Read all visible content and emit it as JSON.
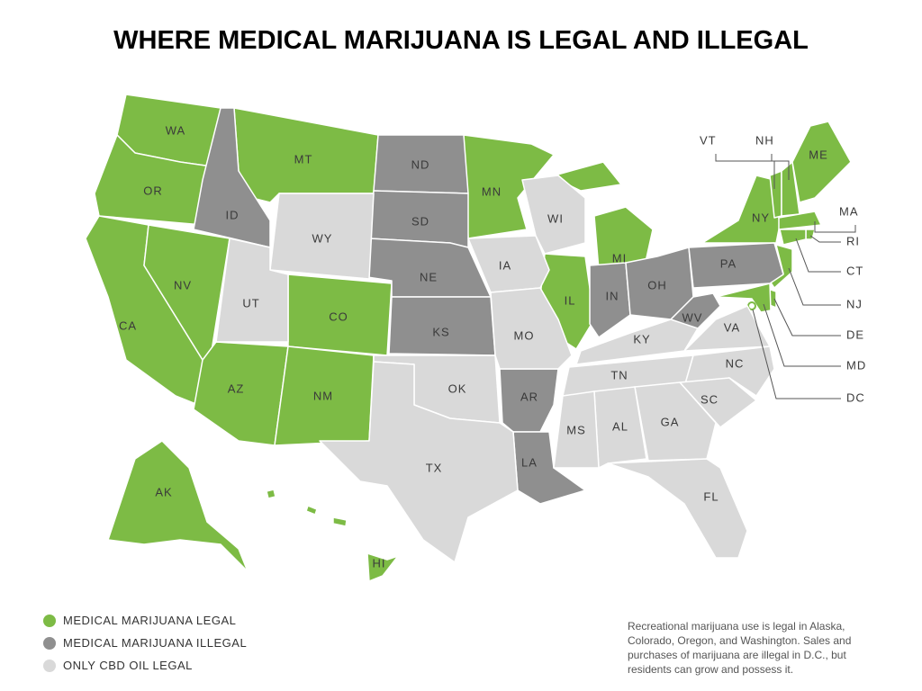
{
  "title": "WHERE MEDICAL MARIJUANA IS LEGAL AND ILLEGAL",
  "legend": [
    {
      "label": "MEDICAL MARIJUANA LEGAL",
      "color": "#7dbb45",
      "states": [
        "WA",
        "OR",
        "CA",
        "NV",
        "AZ",
        "MT",
        "CO",
        "NM",
        "MN",
        "IL",
        "MI",
        "NY",
        "VT",
        "NH",
        "ME",
        "MA",
        "RI",
        "CT",
        "NJ",
        "DE",
        "MD",
        "DC",
        "AK",
        "HI"
      ]
    },
    {
      "label": "MEDICAL MARIJUANA ILLEGAL",
      "color": "#8f8f8f",
      "states": [
        "ID",
        "ND",
        "SD",
        "NE",
        "KS",
        "AR",
        "LA",
        "IN",
        "OH",
        "WV",
        "PA"
      ]
    },
    {
      "label": "ONLY CBD OIL LEGAL",
      "color": "#d9d9d9",
      "states": [
        "WY",
        "UT",
        "IA",
        "WI",
        "MO",
        "OK",
        "TX",
        "KY",
        "TN",
        "VA",
        "NC",
        "SC",
        "GA",
        "AL",
        "MS",
        "FL"
      ]
    }
  ],
  "note": [
    "Recreational marijuana use is legal in Alaska,",
    "Colorado, Oregon, and Washington. Sales and",
    "purchases of marijuana are illegal in D.C., but",
    "residents can grow and possess it."
  ]
}
